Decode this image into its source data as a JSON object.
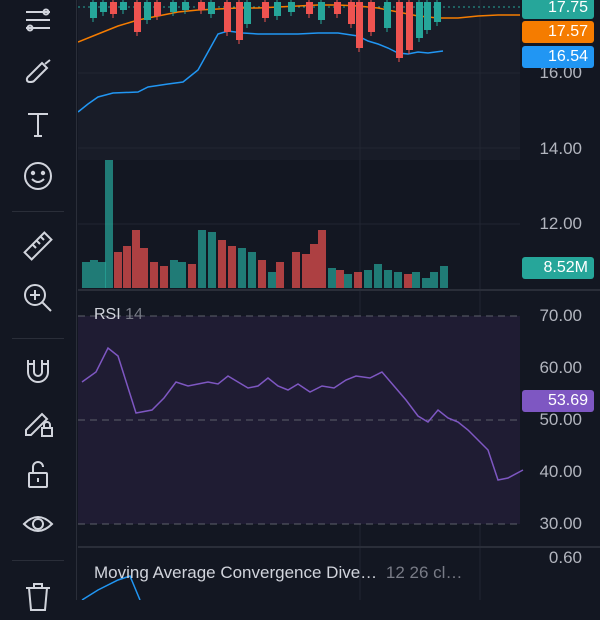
{
  "toolbar": {
    "tools": [
      {
        "name": "fib-retracement-icon"
      },
      {
        "name": "brush-icon"
      },
      {
        "name": "text-icon"
      },
      {
        "name": "emoji-icon"
      },
      {
        "name": "ruler-icon"
      },
      {
        "name": "zoom-in-icon"
      },
      {
        "name": "magnet-icon"
      },
      {
        "name": "lock-drawings-icon"
      },
      {
        "name": "unlock-icon"
      },
      {
        "name": "eye-icon"
      },
      {
        "name": "trash-icon"
      }
    ]
  },
  "price_pane": {
    "ticks": [
      "16.00",
      "14.00",
      "12.00"
    ],
    "badges": [
      {
        "value": "17.75",
        "color": "#26a69a"
      },
      {
        "value": "17.57",
        "color": "#f57c00"
      },
      {
        "value": "16.54",
        "color": "#2196f3"
      }
    ],
    "volume_badge": {
      "value": "8.52M",
      "color": "#26a69a"
    }
  },
  "rsi_pane": {
    "label": "RSI",
    "length": "14",
    "ticks": [
      "70.00",
      "60.00",
      "50.00",
      "40.00",
      "30.00"
    ],
    "current": {
      "value": "53.69",
      "color": "#7e57c2"
    }
  },
  "macd_pane": {
    "title": "Moving Average Convergence Dive…",
    "params": "12 26 cl…",
    "tick": "0.60"
  },
  "colors": {
    "up": "#26a69a",
    "down": "#ef5350",
    "rsi": "#7e57c2",
    "background": "#131722"
  }
}
